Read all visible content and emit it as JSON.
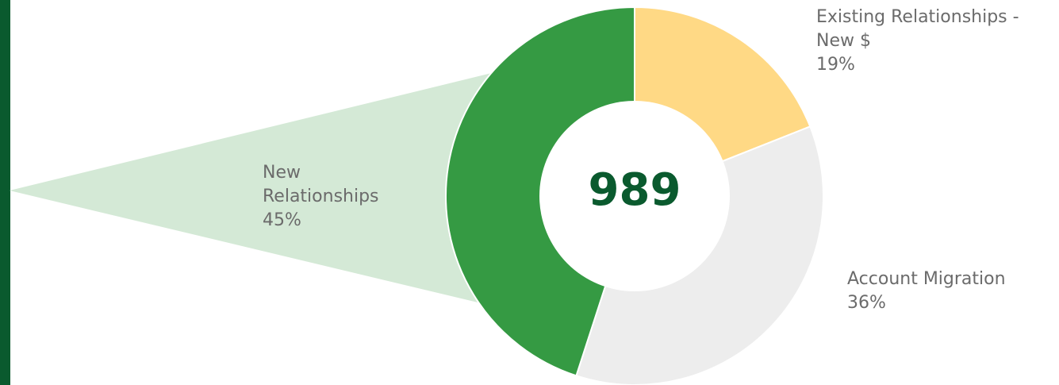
{
  "chart_data": {
    "type": "pie",
    "variant": "donut",
    "center_value": "989",
    "slices": [
      {
        "name": "Existing Relationships - New $",
        "name_lines": [
          "Existing Relationships -",
          "New $"
        ],
        "value": 19,
        "pct_label": "19%",
        "color": "#FFD985"
      },
      {
        "name": "Account Migration",
        "name_lines": [
          "Account Migration"
        ],
        "value": 36,
        "pct_label": "36%",
        "color": "#EDEDED"
      },
      {
        "name": "New Relationships",
        "name_lines": [
          "New",
          "Relationships"
        ],
        "value": 45,
        "pct_label": "45%",
        "color": "#359A43"
      }
    ],
    "highlighted_slice": "New Relationships",
    "highlight_color": "#D4E9D6",
    "legend": "none"
  },
  "colors": {
    "left_bar": "#0A5A2E",
    "center_text": "#0A5A2E",
    "label_text": "#6B6B6B"
  }
}
